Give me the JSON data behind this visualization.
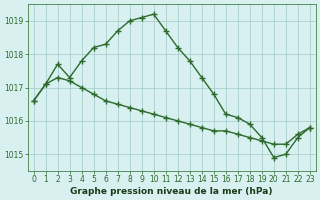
{
  "line1_x": [
    0,
    1,
    2,
    3,
    4,
    5,
    6,
    7,
    8,
    9,
    10,
    11,
    12,
    13,
    14,
    15,
    16,
    17,
    18,
    19,
    20,
    21,
    22,
    23
  ],
  "line1_y": [
    1016.6,
    1017.1,
    1017.7,
    1017.3,
    1017.8,
    1018.2,
    1018.3,
    1018.7,
    1019.0,
    1019.1,
    1019.2,
    1018.7,
    1018.2,
    1017.8,
    1017.3,
    1016.8,
    1016.2,
    1016.1,
    1015.9,
    1015.5,
    1014.9,
    1015.0,
    1015.5,
    1015.8
  ],
  "line2_x": [
    0,
    1,
    2,
    3,
    4,
    5,
    6,
    7,
    8,
    9,
    10,
    11,
    12,
    13,
    14,
    15,
    16,
    17,
    18,
    19,
    20,
    21,
    22,
    23
  ],
  "line2_y": [
    1016.6,
    1017.1,
    1017.3,
    1017.2,
    1017.0,
    1016.8,
    1016.6,
    1016.5,
    1016.4,
    1016.3,
    1016.2,
    1016.1,
    1016.0,
    1015.9,
    1015.8,
    1015.7,
    1015.7,
    1015.6,
    1015.5,
    1015.4,
    1015.3,
    1015.3,
    1015.6,
    1015.8
  ],
  "line_color": "#2d6a2d",
  "bg_color": "#d8f0f0",
  "grid_color": "#a0c8c8",
  "xlabel": "Graphe pression niveau de la mer (hPa)",
  "xlabel_color": "#1a3a1a",
  "xlim": [
    -0.5,
    23.5
  ],
  "ylim": [
    1014.5,
    1019.5
  ],
  "yticks": [
    1015,
    1016,
    1017,
    1018,
    1019
  ],
  "xticks": [
    0,
    1,
    2,
    3,
    4,
    5,
    6,
    7,
    8,
    9,
    10,
    11,
    12,
    13,
    14,
    15,
    16,
    17,
    18,
    19,
    20,
    21,
    22,
    23
  ],
  "tick_fontsize": 5.5,
  "xlabel_fontsize": 6.5
}
